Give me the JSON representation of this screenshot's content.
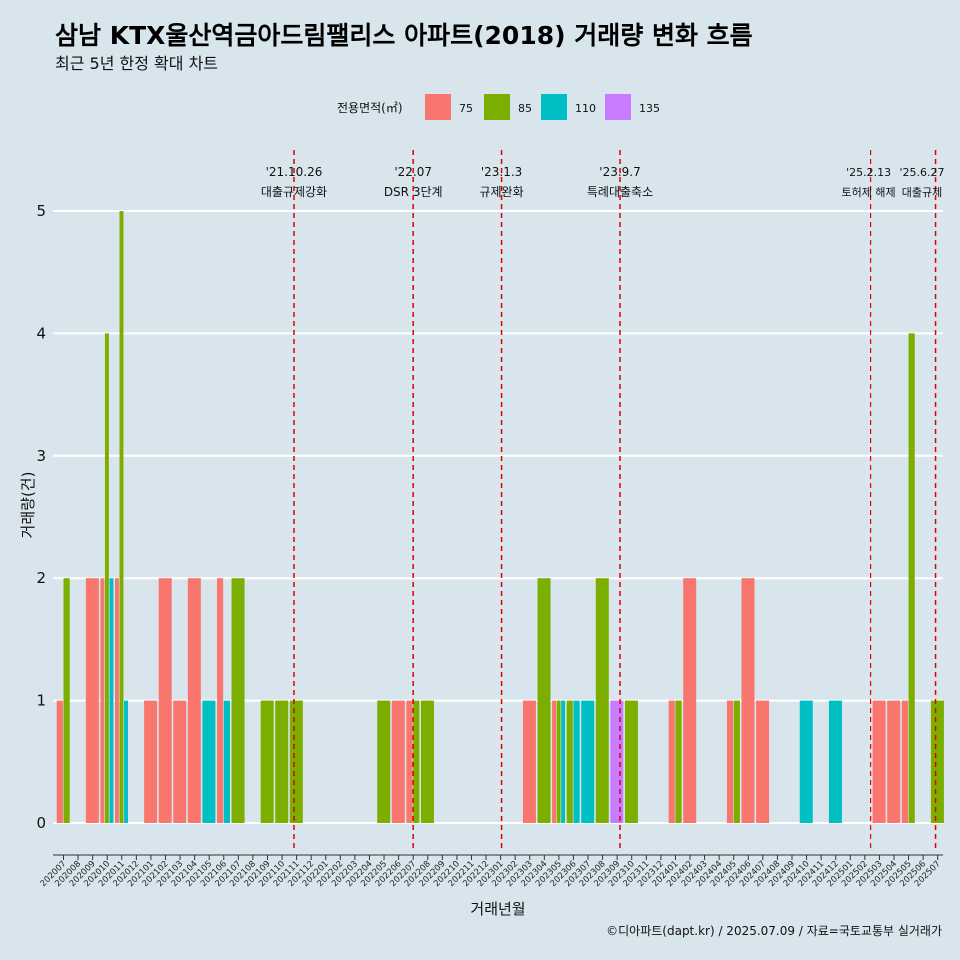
{
  "chart_data": {
    "type": "bar",
    "title": "삼남 KTX울산역금아드림팰리스 아파트(2018) 거래량 변화 흐름",
    "subtitle": "최근 5년 한정 확대 차트",
    "xlabel": "거래년월",
    "ylabel": "거래량(건)",
    "caption": "©디아파트(dapt.kr) / 2025.07.09 / 자료=국토교통부 실거래가",
    "ylim": [
      0,
      5
    ],
    "yticks": [
      "0",
      "1",
      "2",
      "3",
      "4",
      "5"
    ],
    "legend": {
      "title": "전용면적(㎡)",
      "position": "top",
      "items": [
        {
          "label": "75",
          "color": "#f8766d"
        },
        {
          "label": "85",
          "color": "#7cae00"
        },
        {
          "label": "110",
          "color": "#00bfc4"
        },
        {
          "label": "135",
          "color": "#c77cff"
        }
      ]
    },
    "categories": [
      "202007",
      "202008",
      "202009",
      "202010",
      "202011",
      "202012",
      "202101",
      "202102",
      "202103",
      "202104",
      "202105",
      "202106",
      "202107",
      "202108",
      "202109",
      "202110",
      "202111",
      "202112",
      "202201",
      "202202",
      "202203",
      "202204",
      "202205",
      "202206",
      "202207",
      "202208",
      "202209",
      "202210",
      "202211",
      "202212",
      "202301",
      "202302",
      "202303",
      "202304",
      "202305",
      "202306",
      "202307",
      "202308",
      "202309",
      "202310",
      "202311",
      "202312",
      "202401",
      "202402",
      "202403",
      "202404",
      "202405",
      "202406",
      "202407",
      "202408",
      "202409",
      "202410",
      "202411",
      "202412",
      "202501",
      "202502",
      "202503",
      "202504",
      "202505",
      "202506",
      "202507"
    ],
    "series": [
      {
        "name": "75",
        "values": [
          1,
          0,
          2,
          2,
          2,
          0,
          1,
          2,
          1,
          2,
          0,
          2,
          0,
          0,
          0,
          0,
          0,
          0,
          0,
          0,
          0,
          0,
          0,
          1,
          1,
          0,
          0,
          0,
          0,
          0,
          0,
          0,
          1,
          0,
          1,
          0,
          0,
          0,
          0,
          0,
          0,
          0,
          1,
          2,
          0,
          0,
          1,
          2,
          1,
          0,
          0,
          0,
          0,
          0,
          0,
          0,
          1,
          1,
          1,
          0,
          0
        ]
      },
      {
        "name": "85",
        "values": [
          2,
          0,
          0,
          4,
          5,
          0,
          0,
          0,
          0,
          0,
          0,
          0,
          2,
          0,
          1,
          1,
          1,
          0,
          0,
          0,
          0,
          0,
          1,
          0,
          1,
          1,
          0,
          0,
          0,
          0,
          0,
          0,
          0,
          2,
          1,
          1,
          0,
          2,
          0,
          1,
          0,
          0,
          1,
          0,
          0,
          0,
          1,
          0,
          0,
          0,
          0,
          0,
          0,
          0,
          0,
          0,
          0,
          0,
          4,
          0,
          1
        ]
      },
      {
        "name": "110",
        "values": [
          0,
          0,
          0,
          2,
          1,
          0,
          0,
          0,
          0,
          0,
          1,
          1,
          0,
          0,
          0,
          0,
          0,
          0,
          0,
          0,
          0,
          0,
          0,
          0,
          0,
          0,
          0,
          0,
          0,
          0,
          0,
          0,
          0,
          0,
          1,
          1,
          1,
          0,
          0,
          0,
          0,
          0,
          0,
          0,
          0,
          0,
          0,
          0,
          0,
          0,
          0,
          1,
          0,
          1,
          0,
          0,
          0,
          0,
          0,
          0,
          0
        ]
      },
      {
        "name": "135",
        "values": [
          0,
          0,
          0,
          0,
          0,
          0,
          0,
          0,
          0,
          0,
          0,
          0,
          0,
          0,
          0,
          0,
          0,
          0,
          0,
          0,
          0,
          0,
          0,
          0,
          0,
          0,
          0,
          0,
          0,
          0,
          0,
          0,
          0,
          0,
          0,
          0,
          0,
          0,
          1,
          0,
          0,
          0,
          0,
          0,
          0,
          0,
          0,
          0,
          0,
          0,
          0,
          0,
          0,
          0,
          0,
          0,
          0,
          0,
          0,
          0,
          0
        ]
      }
    ],
    "annotations": [
      {
        "date": "2021-10-26",
        "line1": "'21.10.26",
        "line2": "대출규제강화"
      },
      {
        "date": "2022-07-01",
        "line1": "'22.07",
        "line2": "DSR 3단계"
      },
      {
        "date": "2023-01-03",
        "line1": "'23.1.3",
        "line2": "규제완화"
      },
      {
        "date": "2023-09-07",
        "line1": "'23.9.7",
        "line2": "특례대출축소"
      },
      {
        "date": "2025-02-13",
        "line1": "'25.2.13",
        "line2": "토허제 해제"
      },
      {
        "date": "2025-06-27",
        "line1": "'25.6.27",
        "line2": "대출규제"
      }
    ]
  }
}
